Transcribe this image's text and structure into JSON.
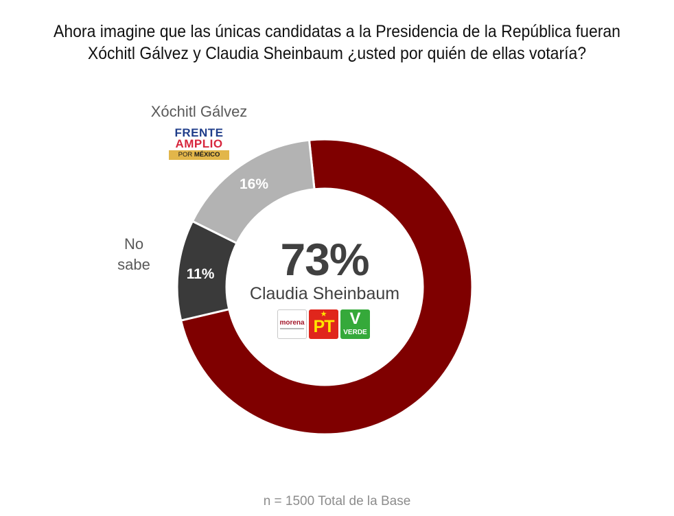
{
  "title": {
    "line1": "Ahora imagine que las únicas candidatas a la Presidencia de la República fueran",
    "line2": "Xóchitl Gálvez y Claudia Sheinbaum ¿usted por quién de ellas votaría?"
  },
  "labels": {
    "xochitl_name": "Xóchitl Gálvez",
    "no_sabe_line1": "No",
    "no_sabe_line2": "sabe",
    "xochitl_pct": "16%",
    "no_sabe_pct": "11%",
    "claudia_pct": "73%",
    "claudia_name": "Claudia Sheinbaum"
  },
  "logos": {
    "frente_amplio": {
      "line1": "FRENTE",
      "line2": "AMPLIO",
      "line3a": "POR ",
      "line3b": "MÉXICO"
    },
    "morena": {
      "text": "morena"
    },
    "pt": {
      "star": "★",
      "text": "PT"
    },
    "verde": {
      "mark": "V",
      "text": "VERDE"
    }
  },
  "footer": "n = 1500 Total de la Base",
  "colors": {
    "claudia": "#7f0000",
    "xochitl": "#b3b3b3",
    "no_sabe": "#3a3a3a"
  },
  "chart_data": {
    "type": "pie",
    "variant": "donut",
    "title": "Ahora imagine que las únicas candidatas a la Presidencia de la República fueran Xóchitl Gálvez y Claudia Sheinbaum ¿usted por quién de ellas votaría?",
    "categories": [
      "Claudia Sheinbaum",
      "No sabe",
      "Xóchitl Gálvez"
    ],
    "values": [
      73,
      11,
      16
    ],
    "unit": "%",
    "colors": [
      "#7f0000",
      "#3a3a3a",
      "#b3b3b3"
    ],
    "center_label": "73% Claudia Sheinbaum",
    "note": "n = 1500 Total de la Base"
  }
}
